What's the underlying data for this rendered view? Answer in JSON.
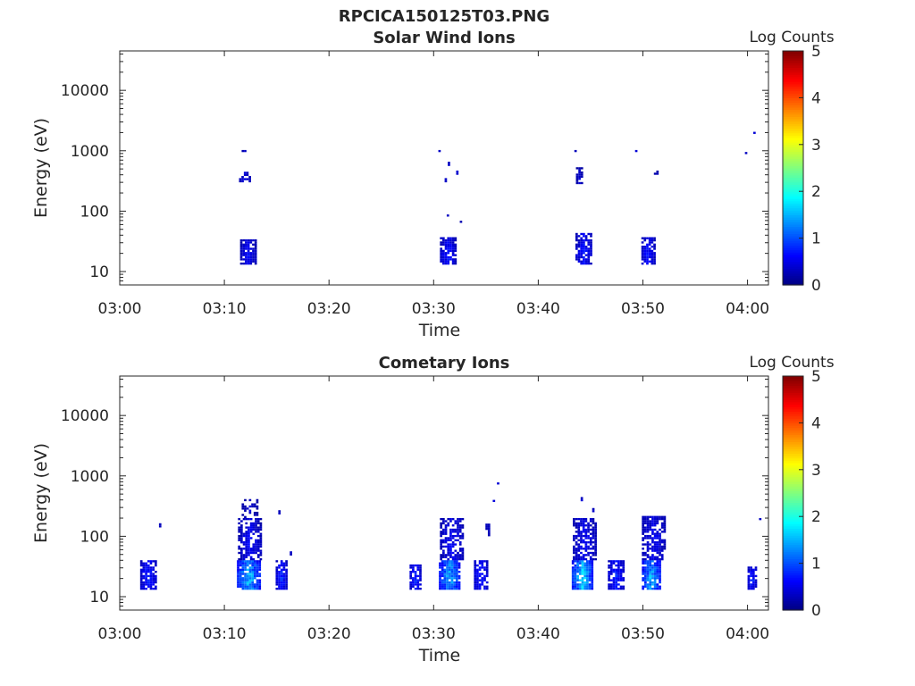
{
  "figure_title": "RPCICA150125T03.PNG",
  "chart_data": [
    {
      "type": "heatmap",
      "title": "Solar Wind Ions",
      "xlabel": "Time",
      "ylabel": "Energy (eV)",
      "x_range_minutes": [
        0,
        62
      ],
      "x_tick_minutes": [
        0,
        10,
        20,
        30,
        40,
        50,
        60
      ],
      "x_tick_labels": [
        "03:00",
        "03:10",
        "03:20",
        "03:30",
        "03:40",
        "03:50",
        "04:00"
      ],
      "y_scale": "log",
      "ylim": [
        6,
        45000
      ],
      "y_ticks": [
        10,
        100,
        1000,
        10000
      ],
      "y_tick_labels": [
        "10",
        "100",
        "1000",
        "10000"
      ],
      "colorbar": {
        "label": "Log Counts",
        "range": [
          0,
          5
        ],
        "ticks": [
          "0",
          "1",
          "2",
          "3",
          "4",
          "5"
        ],
        "colormap": "jet"
      },
      "clusters": [
        {
          "t": 11.9,
          "dt": 0.5,
          "e0": 950,
          "e1": 1050,
          "level": 0.4,
          "density": 0.9
        },
        {
          "t": 12.0,
          "dt": 1.2,
          "e0": 300,
          "e1": 460,
          "level": 0.5,
          "density": 0.7
        },
        {
          "t": 12.3,
          "dt": 1.6,
          "e0": 13,
          "e1": 33,
          "level": 0.6,
          "density": 0.8
        },
        {
          "t": 30.6,
          "dt": 0.3,
          "e0": 950,
          "e1": 1050,
          "level": 0.4,
          "density": 0.9
        },
        {
          "t": 31.2,
          "dt": 0.3,
          "e0": 300,
          "e1": 420,
          "level": 0.4,
          "density": 0.9
        },
        {
          "t": 31.5,
          "dt": 0.3,
          "e0": 560,
          "e1": 640,
          "level": 0.4,
          "density": 0.9
        },
        {
          "t": 32.3,
          "dt": 0.3,
          "e0": 400,
          "e1": 460,
          "level": 0.4,
          "density": 0.9
        },
        {
          "t": 31.4,
          "dt": 0.3,
          "e0": 75,
          "e1": 88,
          "level": 0.4,
          "density": 0.9
        },
        {
          "t": 32.6,
          "dt": 0.2,
          "e0": 64,
          "e1": 70,
          "level": 0.3,
          "density": 0.9
        },
        {
          "t": 31.4,
          "dt": 1.6,
          "e0": 13,
          "e1": 38,
          "level": 0.7,
          "density": 0.8
        },
        {
          "t": 43.6,
          "dt": 0.3,
          "e0": 950,
          "e1": 1050,
          "level": 0.4,
          "density": 0.9
        },
        {
          "t": 43.9,
          "dt": 0.6,
          "e0": 280,
          "e1": 520,
          "level": 0.4,
          "density": 0.7
        },
        {
          "t": 44.3,
          "dt": 1.5,
          "e0": 13,
          "e1": 45,
          "level": 0.7,
          "density": 0.8
        },
        {
          "t": 49.4,
          "dt": 0.3,
          "e0": 950,
          "e1": 1050,
          "level": 0.4,
          "density": 0.9
        },
        {
          "t": 51.3,
          "dt": 0.5,
          "e0": 400,
          "e1": 480,
          "level": 0.4,
          "density": 0.8
        },
        {
          "t": 50.5,
          "dt": 1.3,
          "e0": 13,
          "e1": 38,
          "level": 0.7,
          "density": 0.8
        },
        {
          "t": 59.9,
          "dt": 0.3,
          "e0": 880,
          "e1": 980,
          "level": 0.4,
          "density": 0.9
        },
        {
          "t": 60.7,
          "dt": 0.3,
          "e0": 1900,
          "e1": 2100,
          "level": 0.4,
          "density": 0.9
        }
      ]
    },
    {
      "type": "heatmap",
      "title": "Cometary Ions",
      "xlabel": "Time",
      "ylabel": "Energy (eV)",
      "x_range_minutes": [
        0,
        62
      ],
      "x_tick_minutes": [
        0,
        10,
        20,
        30,
        40,
        50,
        60
      ],
      "x_tick_labels": [
        "03:00",
        "03:10",
        "03:20",
        "03:30",
        "03:40",
        "03:50",
        "04:00"
      ],
      "y_scale": "log",
      "ylim": [
        6,
        45000
      ],
      "y_ticks": [
        10,
        100,
        1000,
        10000
      ],
      "y_tick_labels": [
        "10",
        "100",
        "1000",
        "10000"
      ],
      "colorbar": {
        "label": "Log Counts",
        "range": [
          0,
          5
        ],
        "ticks": [
          "0",
          "1",
          "2",
          "3",
          "4",
          "5"
        ],
        "colormap": "jet"
      },
      "clusters": [
        {
          "t": 2.7,
          "dt": 1.5,
          "e0": 13,
          "e1": 40,
          "level": 0.8,
          "density": 0.8
        },
        {
          "t": 3.9,
          "dt": 0.3,
          "e0": 140,
          "e1": 160,
          "level": 0.4,
          "density": 0.9
        },
        {
          "t": 12.3,
          "dt": 2.2,
          "e0": 13,
          "e1": 40,
          "level": 1.6,
          "density": 0.9
        },
        {
          "t": 12.5,
          "dt": 2.4,
          "e0": 40,
          "e1": 200,
          "level": 0.6,
          "density": 0.7
        },
        {
          "t": 12.4,
          "dt": 1.5,
          "e0": 200,
          "e1": 420,
          "level": 0.4,
          "density": 0.4
        },
        {
          "t": 15.5,
          "dt": 1.2,
          "e0": 13,
          "e1": 40,
          "level": 0.8,
          "density": 0.8
        },
        {
          "t": 15.3,
          "dt": 0.3,
          "e0": 230,
          "e1": 260,
          "level": 0.4,
          "density": 0.9
        },
        {
          "t": 16.4,
          "dt": 0.3,
          "e0": 48,
          "e1": 56,
          "level": 0.4,
          "density": 0.9
        },
        {
          "t": 28.3,
          "dt": 1.2,
          "e0": 13,
          "e1": 34,
          "level": 0.8,
          "density": 0.8
        },
        {
          "t": 31.5,
          "dt": 2.0,
          "e0": 13,
          "e1": 40,
          "level": 1.5,
          "density": 0.9
        },
        {
          "t": 31.8,
          "dt": 2.4,
          "e0": 40,
          "e1": 200,
          "level": 0.6,
          "density": 0.7
        },
        {
          "t": 34.5,
          "dt": 1.3,
          "e0": 13,
          "e1": 40,
          "level": 0.8,
          "density": 0.8
        },
        {
          "t": 35.2,
          "dt": 0.5,
          "e0": 100,
          "e1": 170,
          "level": 0.4,
          "density": 0.6
        },
        {
          "t": 35.8,
          "dt": 0.3,
          "e0": 370,
          "e1": 410,
          "level": 0.4,
          "density": 0.9
        },
        {
          "t": 36.2,
          "dt": 0.3,
          "e0": 720,
          "e1": 800,
          "level": 0.4,
          "density": 0.9
        },
        {
          "t": 44.2,
          "dt": 2.0,
          "e0": 13,
          "e1": 40,
          "level": 1.7,
          "density": 0.9
        },
        {
          "t": 44.4,
          "dt": 2.2,
          "e0": 40,
          "e1": 200,
          "level": 0.6,
          "density": 0.7
        },
        {
          "t": 44.2,
          "dt": 0.3,
          "e0": 380,
          "e1": 460,
          "level": 0.4,
          "density": 0.9
        },
        {
          "t": 45.3,
          "dt": 0.3,
          "e0": 250,
          "e1": 290,
          "level": 0.4,
          "density": 0.9
        },
        {
          "t": 47.4,
          "dt": 1.5,
          "e0": 13,
          "e1": 40,
          "level": 0.8,
          "density": 0.8
        },
        {
          "t": 50.8,
          "dt": 1.8,
          "e0": 13,
          "e1": 40,
          "level": 1.5,
          "density": 0.9
        },
        {
          "t": 51.0,
          "dt": 2.2,
          "e0": 40,
          "e1": 220,
          "level": 0.6,
          "density": 0.7
        },
        {
          "t": 60.5,
          "dt": 1.0,
          "e0": 13,
          "e1": 32,
          "level": 0.8,
          "density": 0.8
        },
        {
          "t": 61.2,
          "dt": 0.2,
          "e0": 185,
          "e1": 200,
          "level": 0.3,
          "density": 0.9
        }
      ]
    }
  ]
}
